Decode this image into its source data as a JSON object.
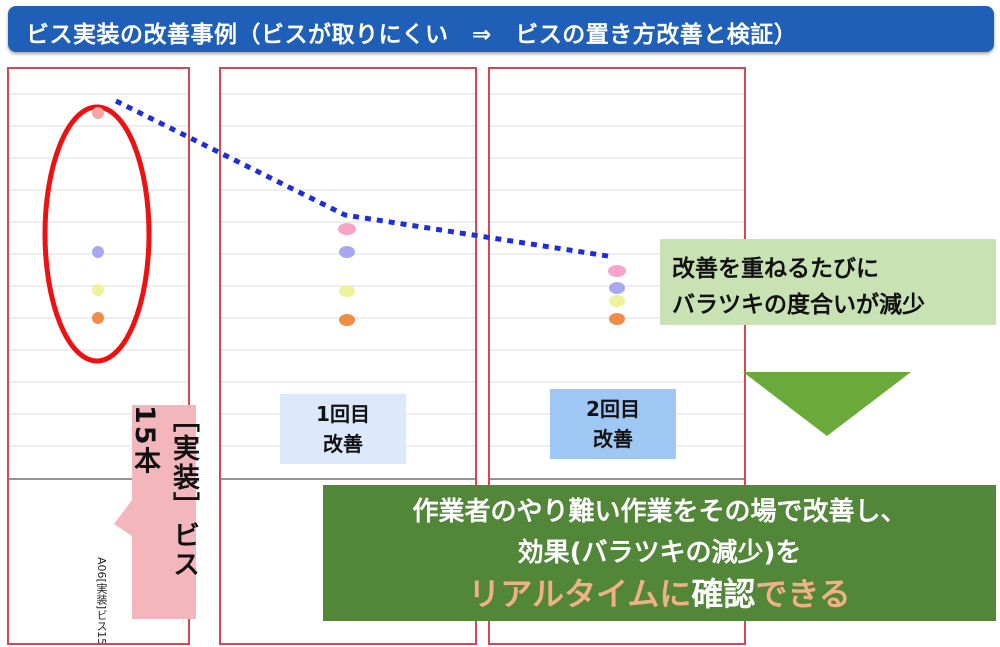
{
  "title": "ビス実装の改善事例（ビスが取りにくい　⇒　ビスの置き方改善と検証）",
  "panel1": {
    "vertical_label": "A06[実装]ビス15本",
    "callout": "［実装］ビス15本"
  },
  "panel2": {
    "label_line1": "1回目",
    "label_line2": "改善"
  },
  "panel3": {
    "label_line1": "2回目",
    "label_line2": "改善"
  },
  "note": {
    "line1": "改善を重ねるたびに",
    "line2": "バラツキの度合いが減少"
  },
  "banner": {
    "line1": "作業者のやり難い作業をその場で改善し、",
    "line2": "効果(バラツキの減少)を",
    "line3_a": "リアルタイムに",
    "line3_b": "確認",
    "line3_c": "できる"
  },
  "colors": {
    "title_bg": "#1f5fb8",
    "panel_border": "#d8474f",
    "dot_pink": "#f9a3c8",
    "dot_purple": "#a8a8f0",
    "dot_yellow": "#eef29a",
    "dot_orange": "#f08c48",
    "trend_line": "#1f2fd8",
    "note_bg": "#c9e2b3",
    "banner_bg": "#528739",
    "highlight": "#f0b088",
    "arrow": "#6aaa3a"
  }
}
